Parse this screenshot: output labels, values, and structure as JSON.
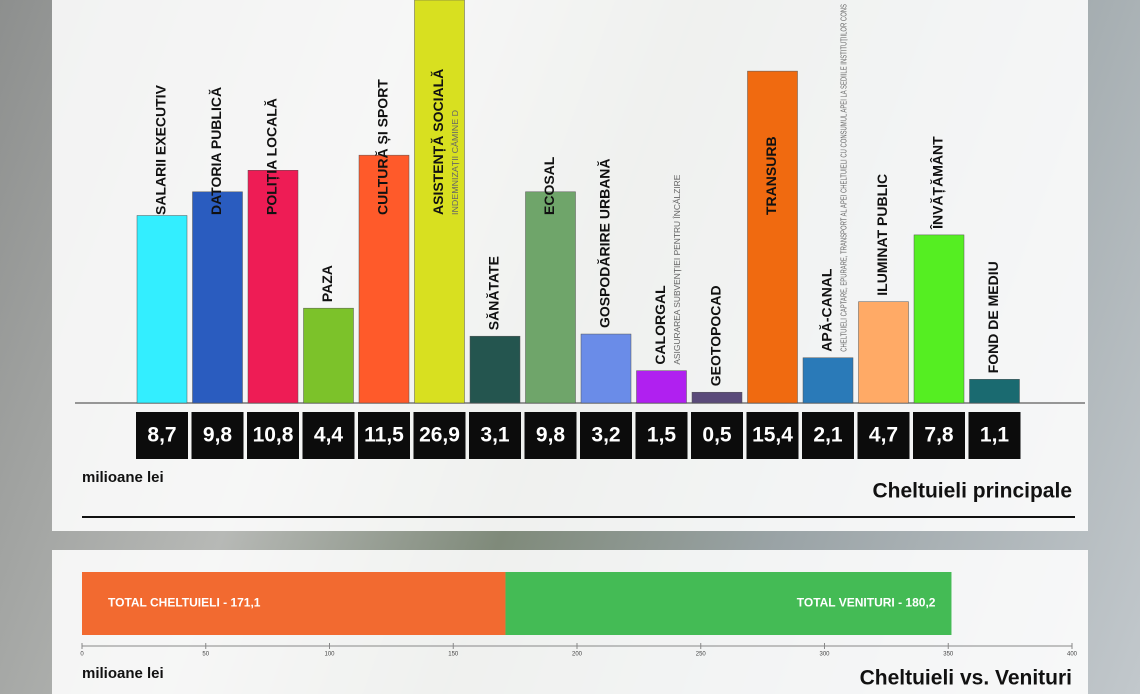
{
  "chart_data": [
    {
      "type": "bar",
      "title": "Cheltuieli principale",
      "unit_label": "milioane lei",
      "categories": [
        "SALARII EXECUTIV",
        "DATORIA PUBLICĂ",
        "POLIȚIA LOCALĂ",
        "PAZA",
        "CULTURĂ ȘI SPORT",
        "ASISTENȚĂ SOCIALĂ",
        "SĂNĂTATE",
        "ECOSAL",
        "GOSPODĂRIRE URBANĂ",
        "CALORGAL",
        "GEOTOPOCAD",
        "TRANSURB",
        "APĂ-CANAL",
        "ILUMINAT PUBLIC",
        "ÎNVĂȚĂMÂNT",
        "FOND DE MEDIU"
      ],
      "sublabels": [
        null,
        null,
        null,
        null,
        null,
        "INDEMNIZAȚII CĂMINE D",
        null,
        null,
        null,
        "ASIGURAREA SUBVENȚIEI PENTRU ÎNCĂLZIRE",
        null,
        null,
        "CHELTUIELI CAPTARE, EPURARE, TRANSPORT AL APEI CHELTUIELI CU CONSUMUL APEI LA SEDIILE INSTITUȚIILOR CONS",
        null,
        null,
        null
      ],
      "values": [
        8.7,
        9.8,
        10.8,
        4.4,
        11.5,
        26.9,
        3.1,
        9.8,
        3.2,
        1.5,
        0.5,
        15.4,
        2.1,
        4.7,
        7.8,
        1.1
      ],
      "value_labels": [
        "8,7",
        "9,8",
        "10,8",
        "4,4",
        "11,5",
        "26,9",
        "3,1",
        "9,8",
        "3,2",
        "1,5",
        "0,5",
        "15,4",
        "2,1",
        "4,7",
        "7,8",
        "1,1"
      ],
      "colors": [
        "#33eeff",
        "#2a5cbf",
        "#ee1c55",
        "#7cc22a",
        "#ff5a2a",
        "#d8e020",
        "#24554f",
        "#6fa56a",
        "#6a8ce8",
        "#b020f0",
        "#5a4a7a",
        "#f06a10",
        "#2a7ab8",
        "#ffaa66",
        "#55ee22",
        "#1a6a70"
      ],
      "ylim": [
        0,
        18.7
      ]
    },
    {
      "type": "stacked-bar",
      "title": "Cheltuieli vs. Venituri",
      "unit_label": "milioane lei",
      "series": [
        {
          "color": "#f26a30",
          "values": [
            171.1
          ],
          "value_labels": [
            "TOTAL CHELTUIELI - 171,1"
          ]
        },
        {
          "color": "#44bb55",
          "values": [
            180.2
          ],
          "value_labels": [
            "TOTAL VENITURI - 180,2"
          ]
        }
      ],
      "xlim": [
        0,
        400
      ],
      "xticks": [
        0,
        50,
        100,
        150,
        200,
        250,
        300,
        350,
        400
      ]
    }
  ]
}
